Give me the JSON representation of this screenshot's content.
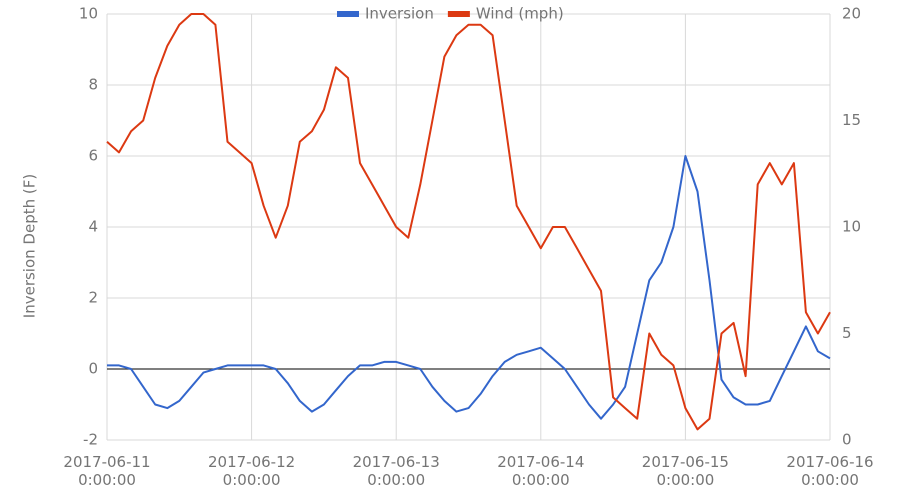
{
  "chart_data": {
    "type": "line",
    "y_label": "Inversion Depth (F)",
    "legend": "top",
    "grid": true,
    "x": [
      "2017-06-11 0:00:00",
      "2017-06-11 2:00:00",
      "2017-06-11 4:00:00",
      "2017-06-11 6:00:00",
      "2017-06-11 8:00:00",
      "2017-06-11 10:00:00",
      "2017-06-11 12:00:00",
      "2017-06-11 14:00:00",
      "2017-06-11 16:00:00",
      "2017-06-11 18:00:00",
      "2017-06-11 20:00:00",
      "2017-06-11 22:00:00",
      "2017-06-12 0:00:00",
      "2017-06-12 2:00:00",
      "2017-06-12 4:00:00",
      "2017-06-12 6:00:00",
      "2017-06-12 8:00:00",
      "2017-06-12 10:00:00",
      "2017-06-12 12:00:00",
      "2017-06-12 14:00:00",
      "2017-06-12 16:00:00",
      "2017-06-12 18:00:00",
      "2017-06-12 20:00:00",
      "2017-06-12 22:00:00",
      "2017-06-13 0:00:00",
      "2017-06-13 2:00:00",
      "2017-06-13 4:00:00",
      "2017-06-13 6:00:00",
      "2017-06-13 8:00:00",
      "2017-06-13 10:00:00",
      "2017-06-13 12:00:00",
      "2017-06-13 14:00:00",
      "2017-06-13 16:00:00",
      "2017-06-13 18:00:00",
      "2017-06-13 20:00:00",
      "2017-06-13 22:00:00",
      "2017-06-14 0:00:00",
      "2017-06-14 2:00:00",
      "2017-06-14 4:00:00",
      "2017-06-14 6:00:00",
      "2017-06-14 8:00:00",
      "2017-06-14 10:00:00",
      "2017-06-14 12:00:00",
      "2017-06-14 14:00:00",
      "2017-06-14 16:00:00",
      "2017-06-14 18:00:00",
      "2017-06-14 20:00:00",
      "2017-06-14 22:00:00",
      "2017-06-15 0:00:00",
      "2017-06-15 2:00:00",
      "2017-06-15 4:00:00",
      "2017-06-15 6:00:00",
      "2017-06-15 8:00:00",
      "2017-06-15 10:00:00",
      "2017-06-15 12:00:00",
      "2017-06-15 14:00:00",
      "2017-06-15 16:00:00",
      "2017-06-15 18:00:00",
      "2017-06-15 20:00:00",
      "2017-06-15 22:00:00",
      "2017-06-16 0:00:00"
    ],
    "xlim": [
      "2017-06-11 0:00:00",
      "2017-06-16 0:00:00"
    ],
    "xticks": [
      "2017-06-11 0:00:00",
      "2017-06-12 0:00:00",
      "2017-06-13 0:00:00",
      "2017-06-14 0:00:00",
      "2017-06-15 0:00:00",
      "2017-06-16 0:00:00"
    ],
    "ylim": [
      -2,
      10
    ],
    "yticks": [
      -2,
      0,
      2,
      4,
      6,
      8,
      10
    ],
    "y2lim": [
      0,
      20
    ],
    "y2ticks": [
      0,
      5,
      10,
      15,
      20
    ],
    "series": [
      {
        "name": "Inversion",
        "color": "#3366cc",
        "values": [
          0.1,
          0.1,
          0,
          -0.5,
          -1,
          -1.1,
          -0.9,
          -0.5,
          -0.1,
          0,
          0.1,
          0.1,
          0.1,
          0.1,
          0,
          -0.4,
          -0.9,
          -1.2,
          -1,
          -0.6,
          -0.2,
          0.1,
          0.1,
          0.2,
          0.2,
          0.1,
          0,
          -0.5,
          -0.9,
          -1.2,
          -1.1,
          -0.7,
          -0.2,
          0.2,
          0.4,
          0.5,
          0.6,
          0.3,
          0,
          -0.5,
          -1,
          -1.4,
          -1,
          -0.5,
          1,
          2.5,
          3,
          4,
          6,
          5,
          2.5,
          -0.3,
          -0.8,
          -1,
          -1,
          -0.9,
          -0.2,
          0.5,
          1.2,
          0.5,
          0.3
        ]
      },
      {
        "name": "Wind (mph)",
        "color": "#dc3912",
        "axis": "y2",
        "values": [
          14,
          13.5,
          14.5,
          15,
          17,
          18.5,
          19.5,
          20,
          20,
          19.5,
          14,
          13.5,
          13,
          11,
          9.5,
          11,
          14,
          14.5,
          15.5,
          17.5,
          17,
          13,
          12,
          11,
          10,
          9.5,
          12,
          15,
          18,
          19,
          19.5,
          19.5,
          19,
          15,
          11,
          10,
          9,
          10,
          10,
          9,
          8,
          7,
          2,
          1.5,
          1,
          5,
          4,
          3.5,
          1.5,
          0.5,
          1,
          5,
          5.5,
          3,
          12,
          13,
          12,
          13,
          6,
          5,
          6
        ]
      }
    ]
  }
}
